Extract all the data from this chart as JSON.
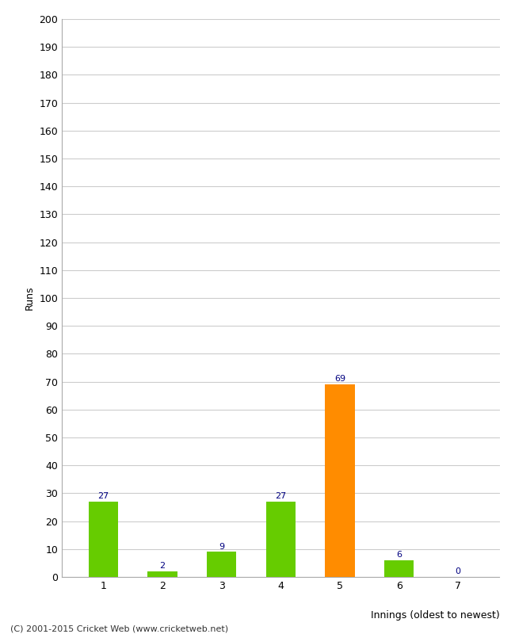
{
  "xlabel": "Innings (oldest to newest)",
  "ylabel": "Runs",
  "categories": [
    1,
    2,
    3,
    4,
    5,
    6,
    7
  ],
  "values": [
    27,
    2,
    9,
    27,
    69,
    6,
    0
  ],
  "bar_colors": [
    "#66cc00",
    "#66cc00",
    "#66cc00",
    "#66cc00",
    "#ff8c00",
    "#66cc00",
    "#66cc00"
  ],
  "label_color": "#000080",
  "ylim": [
    0,
    200
  ],
  "yticks": [
    0,
    10,
    20,
    30,
    40,
    50,
    60,
    70,
    80,
    90,
    100,
    110,
    120,
    130,
    140,
    150,
    160,
    170,
    180,
    190,
    200
  ],
  "background_color": "#ffffff",
  "grid_color": "#cccccc",
  "footer": "(C) 2001-2015 Cricket Web (www.cricketweb.net)"
}
